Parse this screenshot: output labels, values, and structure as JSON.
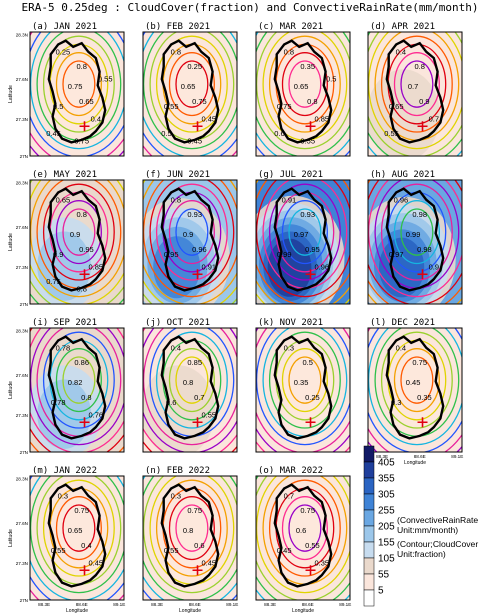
{
  "title": "ERA-5 0.25deg : CloudCover(fraction) and ConvectiveRainRate(mm/month)",
  "chart_data": {
    "type": "heatmap",
    "variables": {
      "shaded": "ConvectiveRainRate (mm/month)",
      "contour": "CloudCover (fraction)"
    },
    "ylabel": "Latitude",
    "xlabel": "Longitude",
    "y_ticks": [
      "28.3N",
      "27.6N",
      "27.3N",
      "27N"
    ],
    "x_ticks": [
      "88.3E",
      "88.6E",
      "89.1E"
    ],
    "colorbar": {
      "ticks": [
        405,
        355,
        305,
        255,
        205,
        155,
        105,
        55,
        5
      ],
      "colors": [
        "#111a66",
        "#1f3f9c",
        "#2a64c2",
        "#3f83d6",
        "#6aa7e2",
        "#9cc7ea",
        "#c7dcef",
        "#ead9cc",
        "#fbe6dc",
        "#ffffff"
      ],
      "note_rain": "(ConvectiveRainRate Unit:mm/month)",
      "note_cloud": "(Contour;CloudCover Unit:fraction)"
    },
    "contour_colors": [
      "#9a00c8",
      "#e8209c",
      "#2255ff",
      "#15b5e0",
      "#2fc04a",
      "#9bd12e",
      "#e0d400",
      "#f4a000",
      "#ff5a00",
      "#e00010",
      "#ff2b90"
    ],
    "panels": [
      {
        "label": "(a) JAN 2021",
        "rain_level": 0,
        "cloud_labels": [
          {
            "v": "0.25"
          },
          {
            "v": "0.8"
          },
          {
            "v": "0.75"
          },
          {
            "v": "0.65"
          },
          {
            "v": "0.5"
          },
          {
            "v": "0.4"
          },
          {
            "v": "0.45"
          },
          {
            "v": "0.75"
          },
          {
            "v": "0.55"
          }
        ]
      },
      {
        "label": "(b) FEB 2021",
        "rain_level": 0,
        "cloud_labels": [
          {
            "v": "0.8"
          },
          {
            "v": "0.25"
          },
          {
            "v": "0.65"
          },
          {
            "v": "0.75"
          },
          {
            "v": "0.55"
          },
          {
            "v": "0.45"
          },
          {
            "v": "0.5"
          },
          {
            "v": "0.45"
          }
        ]
      },
      {
        "label": "(c) MAR 2021",
        "rain_level": 0,
        "cloud_labels": [
          {
            "v": "0.8"
          },
          {
            "v": "0.35"
          },
          {
            "v": "0.65"
          },
          {
            "v": "0.8"
          },
          {
            "v": "0.75"
          },
          {
            "v": "0.85"
          },
          {
            "v": "0.6"
          },
          {
            "v": "0.55"
          },
          {
            "v": "0.5"
          }
        ]
      },
      {
        "label": "(d) APR 2021",
        "rain_level": 1,
        "cloud_labels": [
          {
            "v": "0.4"
          },
          {
            "v": "0.8"
          },
          {
            "v": "0.7"
          },
          {
            "v": "0.9"
          },
          {
            "v": "0.65"
          },
          {
            "v": "0.7"
          },
          {
            "v": "0.55"
          }
        ]
      },
      {
        "label": "(e) MAY 2021",
        "rain_level": 3,
        "cloud_labels": [
          {
            "v": "0.65"
          },
          {
            "v": "0.8"
          },
          {
            "v": "0.9"
          },
          {
            "v": "0.95"
          },
          {
            "v": "0.9"
          },
          {
            "v": "0.85"
          },
          {
            "v": "0.75"
          },
          {
            "v": "0.8"
          }
        ]
      },
      {
        "label": "(f) JUN 2021",
        "rain_level": 5,
        "cloud_labels": [
          {
            "v": "0.8"
          },
          {
            "v": "0.93"
          },
          {
            "v": "0.9"
          },
          {
            "v": "0.96"
          },
          {
            "v": "0.95"
          },
          {
            "v": "0.91"
          }
        ]
      },
      {
        "label": "(g) JUL 2021",
        "rain_level": 7,
        "cloud_labels": [
          {
            "v": "0.91"
          },
          {
            "v": "0.93"
          },
          {
            "v": "0.97"
          },
          {
            "v": "0.95"
          },
          {
            "v": "0.99"
          },
          {
            "v": "0.96"
          }
        ]
      },
      {
        "label": "(h) AUG 2021",
        "rain_level": 6,
        "cloud_labels": [
          {
            "v": "0.96"
          },
          {
            "v": "0.98"
          },
          {
            "v": "0.99"
          },
          {
            "v": "0.98"
          },
          {
            "v": "0.97"
          },
          {
            "v": "0.9"
          }
        ]
      },
      {
        "label": "(i) SEP 2021",
        "rain_level": 3,
        "cloud_labels": [
          {
            "v": "0.78"
          },
          {
            "v": "0.86"
          },
          {
            "v": "0.82"
          },
          {
            "v": "0.8"
          },
          {
            "v": "0.78"
          },
          {
            "v": "0.76"
          }
        ]
      },
      {
        "label": "(j) OCT 2021",
        "rain_level": 1,
        "cloud_labels": [
          {
            "v": "0.4"
          },
          {
            "v": "0.85"
          },
          {
            "v": "0.8"
          },
          {
            "v": "0.7"
          },
          {
            "v": "0.6"
          },
          {
            "v": "0.55"
          }
        ]
      },
      {
        "label": "(k) NOV 2021",
        "rain_level": 0,
        "cloud_labels": [
          {
            "v": "0.3"
          },
          {
            "v": "0.5"
          },
          {
            "v": "0.35"
          },
          {
            "v": "0.25"
          }
        ]
      },
      {
        "label": "(l) DEC 2021",
        "rain_level": 0,
        "cloud_labels": [
          {
            "v": "0.4"
          },
          {
            "v": "0.75"
          },
          {
            "v": "0.45"
          },
          {
            "v": "0.35"
          },
          {
            "v": "0.3"
          }
        ]
      },
      {
        "label": "(m) JAN 2022",
        "rain_level": 0,
        "cloud_labels": [
          {
            "v": "0.3"
          },
          {
            "v": "0.75"
          },
          {
            "v": "0.65"
          },
          {
            "v": "0.4"
          },
          {
            "v": "0.55"
          },
          {
            "v": "0.45"
          }
        ]
      },
      {
        "label": "(n) FEB 2022",
        "rain_level": 0,
        "cloud_labels": [
          {
            "v": "0.3"
          },
          {
            "v": "0.75"
          },
          {
            "v": "0.8"
          },
          {
            "v": "0.6"
          },
          {
            "v": "0.55"
          },
          {
            "v": "0.45"
          }
        ]
      },
      {
        "label": "(o) MAR 2022",
        "rain_level": 0,
        "cloud_labels": [
          {
            "v": "0.7"
          },
          {
            "v": "0.75"
          },
          {
            "v": "0.6"
          },
          {
            "v": "0.55"
          },
          {
            "v": "0.45"
          },
          {
            "v": "0.35"
          }
        ]
      }
    ]
  }
}
